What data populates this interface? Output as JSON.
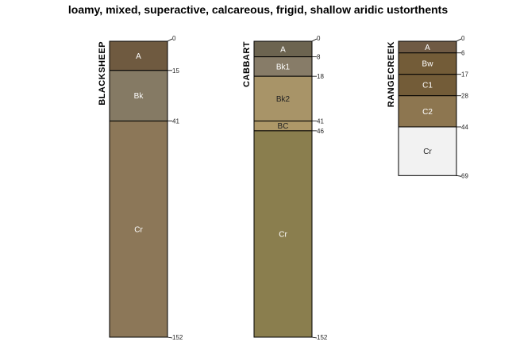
{
  "title": "loamy, mixed, superactive, calcareous, frigid, shallow aridic ustorthents",
  "chart_data": {
    "type": "soil-profile",
    "depth_units": "cm",
    "profiles": [
      {
        "name": "BLACKSHEEP",
        "horizons": [
          {
            "name": "A",
            "top": 0,
            "bottom": 15,
            "color": "#6f5a40",
            "text_color": "#ffffff"
          },
          {
            "name": "Bk",
            "top": 15,
            "bottom": 41,
            "color": "#857a64",
            "text_color": "#ffffff"
          },
          {
            "name": "Cr",
            "top": 41,
            "bottom": 152,
            "color": "#8c7758",
            "text_color": "#ffffff"
          }
        ],
        "depth_ticks": [
          "0",
          "15",
          "41",
          "152"
        ]
      },
      {
        "name": "CABBART",
        "horizons": [
          {
            "name": "A",
            "top": 0,
            "bottom": 8,
            "color": "#6c6450",
            "text_color": "#ffffff"
          },
          {
            "name": "Bk1",
            "top": 8,
            "bottom": 18,
            "color": "#877c68",
            "text_color": "#ffffff"
          },
          {
            "name": "Bk2",
            "top": 18,
            "bottom": 41,
            "color": "#a89468",
            "text_color": "#222222"
          },
          {
            "name": "BC",
            "top": 41,
            "bottom": 46,
            "color": "#ae9868",
            "text_color": "#222222"
          },
          {
            "name": "Cr",
            "top": 46,
            "bottom": 152,
            "color": "#8a7e4e",
            "text_color": "#ffffff"
          }
        ],
        "depth_ticks": [
          "0",
          "8",
          "18",
          "41",
          "46",
          "152"
        ]
      },
      {
        "name": "RANGECREEK",
        "horizons": [
          {
            "name": "A",
            "top": 0,
            "bottom": 6,
            "color": "#6f5a44",
            "text_color": "#ffffff"
          },
          {
            "name": "Bw",
            "top": 6,
            "bottom": 17,
            "color": "#735c38",
            "text_color": "#ffffff"
          },
          {
            "name": "C1",
            "top": 17,
            "bottom": 28,
            "color": "#735c38",
            "text_color": "#ffffff"
          },
          {
            "name": "C2",
            "top": 28,
            "bottom": 44,
            "color": "#8d7650",
            "text_color": "#ffffff"
          },
          {
            "name": "Cr",
            "top": 44,
            "bottom": 69,
            "color": "#f2f2f2",
            "text_color": "#222222"
          }
        ],
        "depth_ticks": [
          "0",
          "6",
          "17",
          "28",
          "44",
          "69"
        ]
      }
    ]
  }
}
